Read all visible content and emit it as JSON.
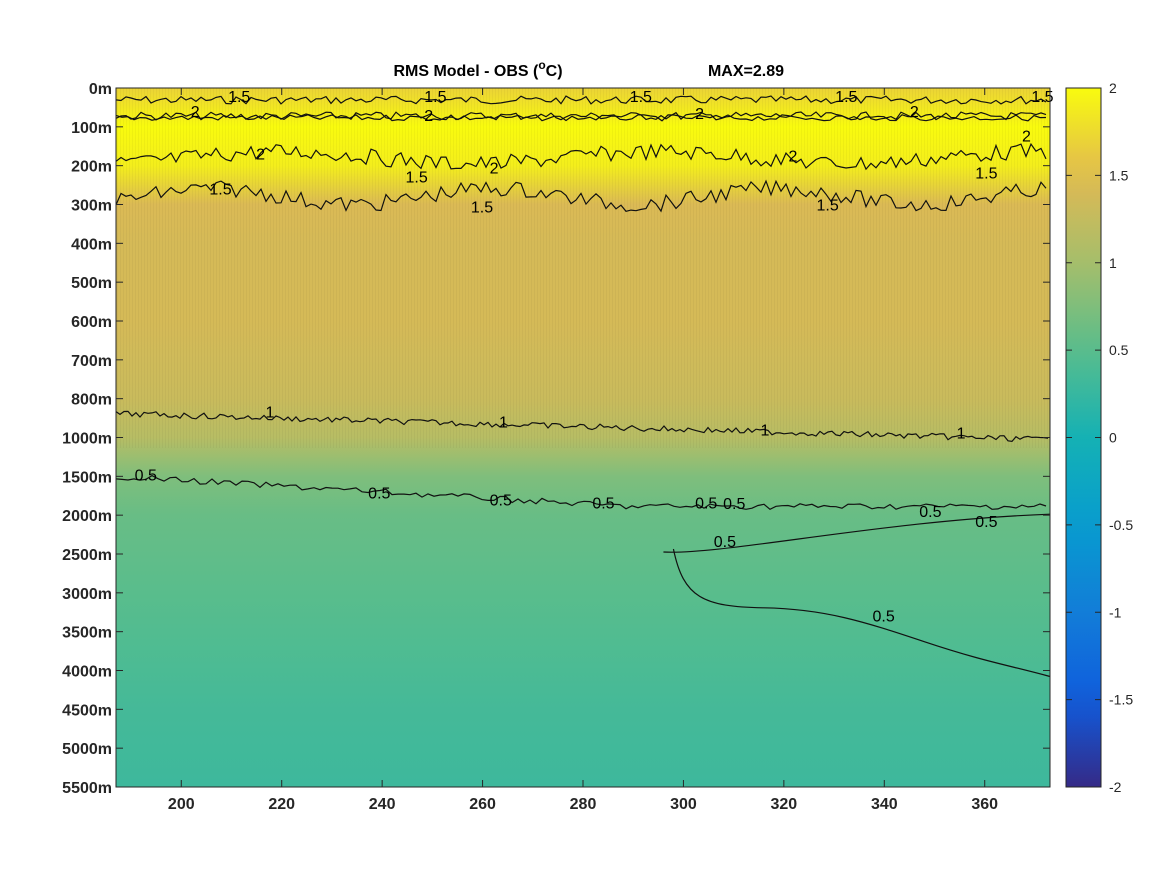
{
  "chart_data": {
    "type": "heatmap",
    "title": "RMS Model - OBS (°C)",
    "title_main": "RMS Model - OBS (",
    "title_sup": "o",
    "title_tail": "C)",
    "max_label": "MAX=2.89",
    "x_ticks": [
      200,
      220,
      240,
      260,
      280,
      300,
      320,
      340,
      360
    ],
    "x_tick_labels": [
      "200",
      "220",
      "240",
      "260",
      "280",
      "300",
      "320",
      "340",
      "360"
    ],
    "xlim": [
      187,
      373
    ],
    "y_tick_labels": [
      "0m",
      "100m",
      "200m",
      "300m",
      "400m",
      "500m",
      "600m",
      "700m",
      "800m",
      "1000m",
      "1500m",
      "2000m",
      "2500m",
      "3000m",
      "3500m",
      "4000m",
      "4500m",
      "5000m",
      "5500m"
    ],
    "colorbar": {
      "ticks": [
        2,
        1.5,
        1,
        0.5,
        0,
        -0.5,
        -1,
        -1.5,
        -2
      ],
      "tick_labels": [
        "2",
        "1.5",
        "1",
        "0.5",
        "0",
        "-0.5",
        "-1",
        "-1.5",
        "-2"
      ],
      "clim": [
        -2,
        2
      ],
      "colormap": "parula"
    },
    "depth_profile": [
      {
        "depth": "0m",
        "value": 1.7
      },
      {
        "depth": "100m",
        "value": 2.0
      },
      {
        "depth": "200m",
        "value": 1.9
      },
      {
        "depth": "300m",
        "value": 1.45
      },
      {
        "depth": "400m",
        "value": 1.4
      },
      {
        "depth": "500m",
        "value": 1.4
      },
      {
        "depth": "600m",
        "value": 1.4
      },
      {
        "depth": "700m",
        "value": 1.35
      },
      {
        "depth": "800m",
        "value": 1.3
      },
      {
        "depth": "1000m",
        "value": 1.15
      },
      {
        "depth": "1500m",
        "value": 0.75
      },
      {
        "depth": "2000m",
        "value": 0.6
      },
      {
        "depth": "2500m",
        "value": 0.55
      },
      {
        "depth": "3000m",
        "value": 0.5
      },
      {
        "depth": "3500m",
        "value": 0.45
      },
      {
        "depth": "4000m",
        "value": 0.4
      },
      {
        "depth": "4500m",
        "value": 0.35
      },
      {
        "depth": "5000m",
        "value": 0.32
      },
      {
        "depth": "5500m",
        "value": 0.3
      }
    ],
    "contour_labels": [
      "2",
      "1.5",
      "1",
      "0.5"
    ],
    "grid": false
  }
}
